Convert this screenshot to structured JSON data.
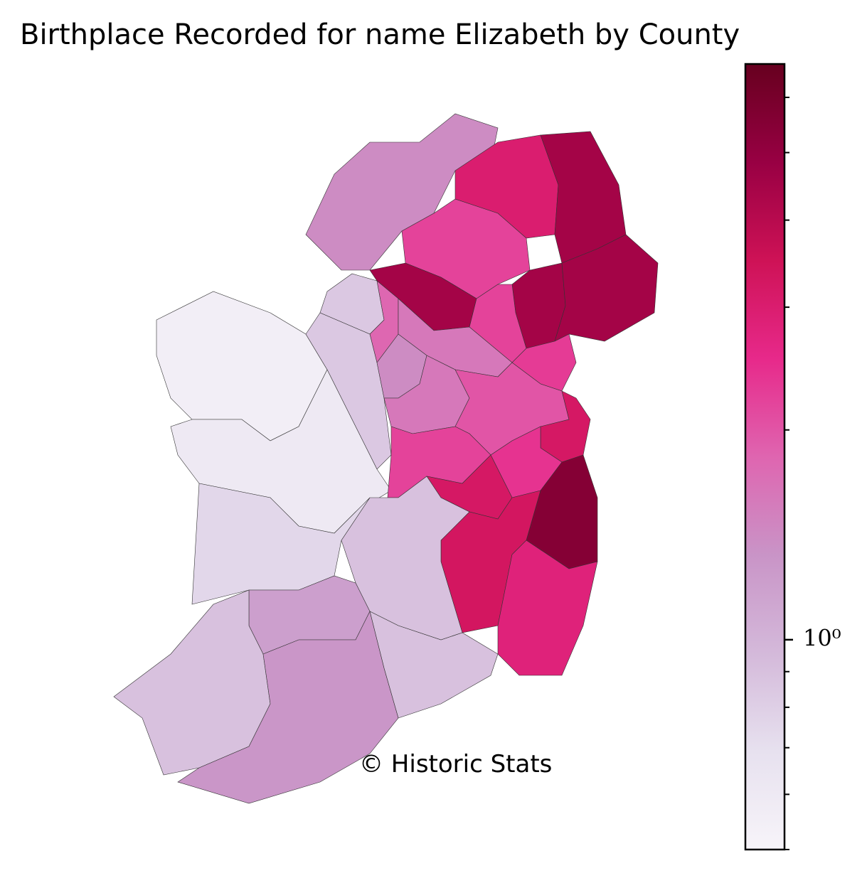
{
  "chart_data": {
    "type": "choropleth",
    "title": "Birthplace Recorded for name Elizabeth by County",
    "credit": "© Historic Stats",
    "values": [
      1.4,
      3.0,
      4.5,
      2.2,
      4.5,
      4.5,
      4.5,
      2.2,
      0.85,
      1.8,
      1.6,
      2.3,
      0.55,
      0.85,
      0.6,
      1.4,
      1.6,
      2.0,
      3.2,
      2.2,
      2.4,
      3.2,
      5.5,
      3.3,
      2.8,
      0.9,
      0.75,
      1.2,
      0.9,
      0.9,
      1.3
    ],
    "colormap": [
      "#f7f4f9",
      "#e7e1ef",
      "#d4b9da",
      "#c994c7",
      "#df65b0",
      "#e7298a",
      "#ce1256",
      "#980043",
      "#67001f"
    ],
    "log_scale": true,
    "ylim": [
      0.5,
      6.7
    ],
    "yticks": [
      {
        "value": 1,
        "label": "10⁰"
      }
    ],
    "yticks_minor": [
      0.5,
      0.6,
      0.7,
      0.8,
      0.9,
      2,
      3,
      4,
      5,
      6
    ]
  }
}
